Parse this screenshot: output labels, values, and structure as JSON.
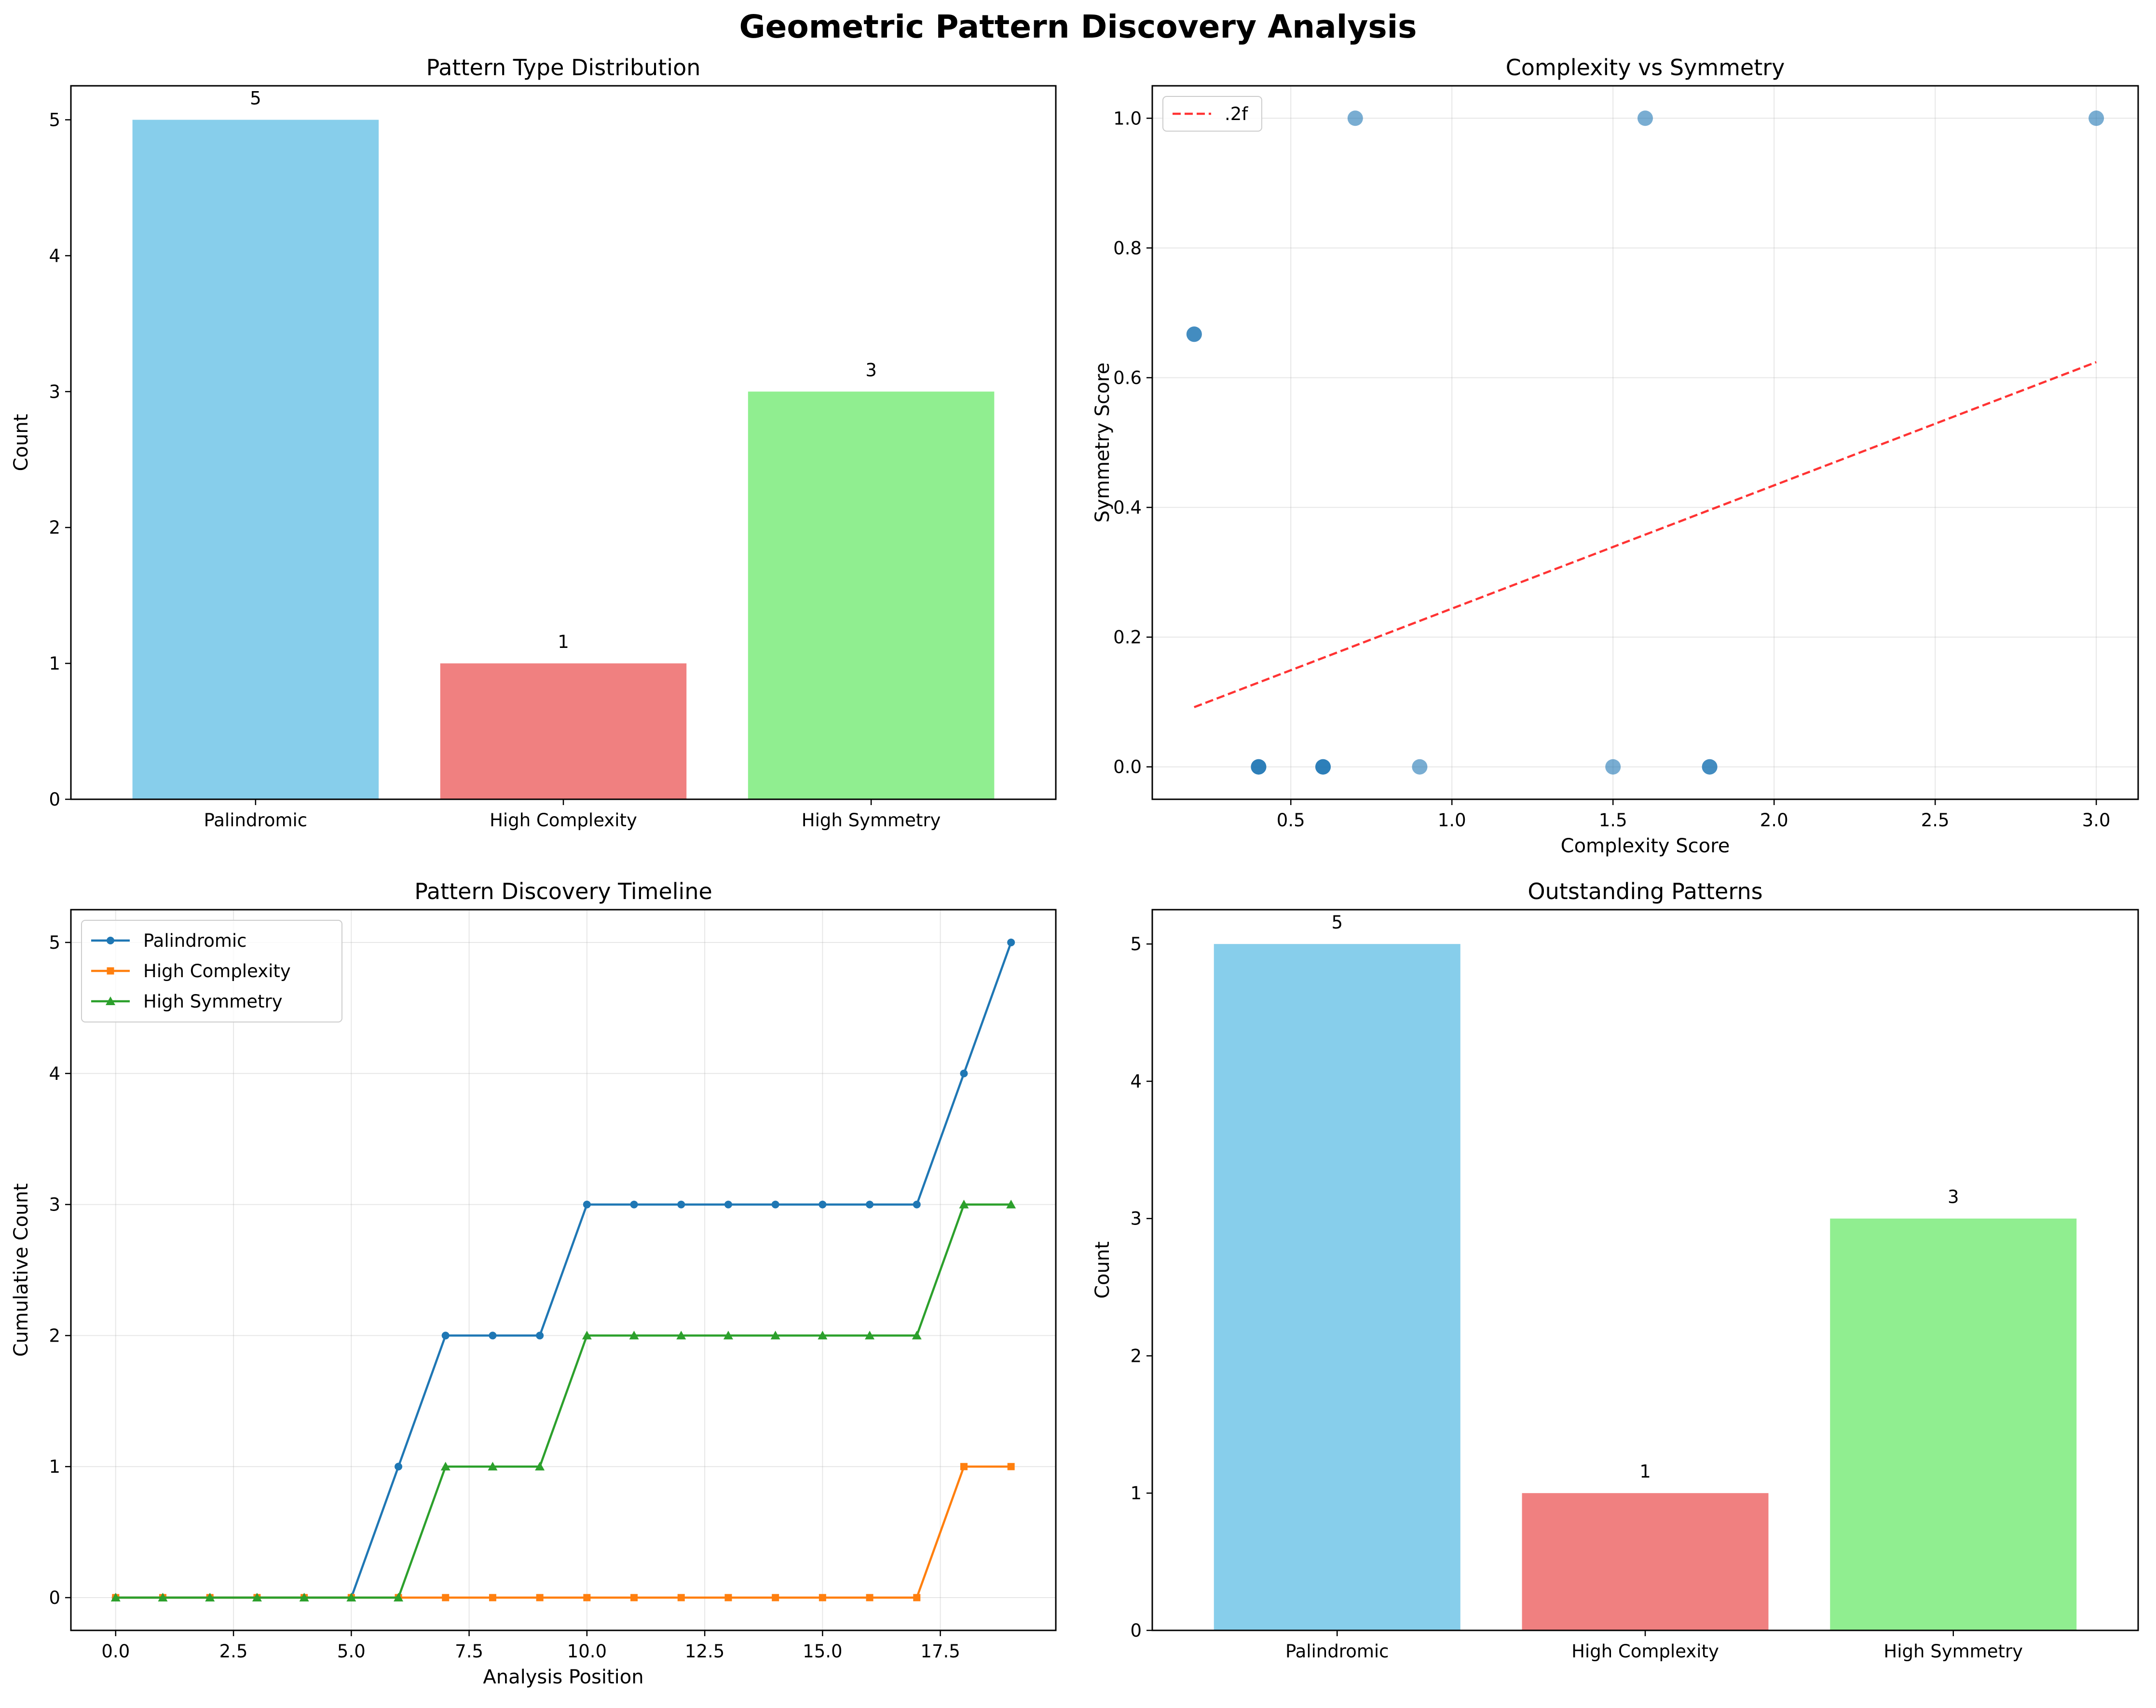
{
  "figure": {
    "title": "Geometric Pattern Discovery Analysis"
  },
  "chart_data": [
    {
      "type": "bar",
      "title": "Pattern Type Distribution",
      "xlabel": "",
      "ylabel": "Count",
      "categories": [
        "Palindromic",
        "High Complexity",
        "High Symmetry"
      ],
      "values": [
        5,
        1,
        3
      ],
      "colors": [
        "#87ceeb",
        "#f08080",
        "#90ee90"
      ],
      "ylim": [
        0,
        5.25
      ],
      "yticks": [
        0,
        1,
        2,
        3,
        4,
        5
      ],
      "data_labels": [
        "5",
        "1",
        "3"
      ],
      "grid": false
    },
    {
      "type": "scatter",
      "title": "Complexity vs Symmetry",
      "xlabel": "Complexity Score",
      "ylabel": "Symmetry Score",
      "xlim": [
        0.07,
        3.13
      ],
      "ylim": [
        -0.05,
        1.05
      ],
      "xticks": [
        "0.5",
        "1.0",
        "1.5",
        "2.0",
        "2.5",
        "3.0"
      ],
      "yticks": [
        "0.0",
        "0.2",
        "0.4",
        "0.6",
        "0.8",
        "1.0"
      ],
      "points": [
        {
          "x": 0.2,
          "y": 0.667
        },
        {
          "x": 0.2,
          "y": 0.667
        },
        {
          "x": 0.4,
          "y": 0.0
        },
        {
          "x": 0.4,
          "y": 0.0
        },
        {
          "x": 0.4,
          "y": 0.0
        },
        {
          "x": 0.6,
          "y": 0.0
        },
        {
          "x": 0.6,
          "y": 0.0
        },
        {
          "x": 0.6,
          "y": 0.0
        },
        {
          "x": 0.7,
          "y": 1.0
        },
        {
          "x": 0.9,
          "y": 0.0
        },
        {
          "x": 1.5,
          "y": 0.0
        },
        {
          "x": 1.6,
          "y": 1.0
        },
        {
          "x": 1.8,
          "y": 0.0
        },
        {
          "x": 1.8,
          "y": 0.0
        },
        {
          "x": 3.0,
          "y": 1.0
        }
      ],
      "point_color": "#1f77b4",
      "trendline": {
        "x": [
          0.2,
          3.0
        ],
        "y": [
          0.092,
          0.624
        ],
        "color": "#ff0000",
        "label": ".2f"
      },
      "legend_position": "upper-left",
      "grid": true
    },
    {
      "type": "line",
      "title": "Pattern Discovery Timeline",
      "xlabel": "Analysis Position",
      "ylabel": "Cumulative Count",
      "x": [
        0,
        1,
        2,
        3,
        4,
        5,
        6,
        7,
        8,
        9,
        10,
        11,
        12,
        13,
        14,
        15,
        16,
        17,
        18,
        19
      ],
      "xlim": [
        -0.95,
        19.95
      ],
      "ylim": [
        -0.25,
        5.25
      ],
      "xticks": [
        "0.0",
        "2.5",
        "5.0",
        "7.5",
        "10.0",
        "12.5",
        "15.0",
        "17.5"
      ],
      "yticks": [
        "0",
        "1",
        "2",
        "3",
        "4",
        "5"
      ],
      "series": [
        {
          "name": "Palindromic",
          "color": "#1f77b4",
          "marker": "circle",
          "values": [
            0,
            0,
            0,
            0,
            0,
            0,
            1,
            2,
            2,
            2,
            3,
            3,
            3,
            3,
            3,
            3,
            3,
            3,
            4,
            5
          ]
        },
        {
          "name": "High Complexity",
          "color": "#ff7f0e",
          "marker": "square",
          "values": [
            0,
            0,
            0,
            0,
            0,
            0,
            0,
            0,
            0,
            0,
            0,
            0,
            0,
            0,
            0,
            0,
            0,
            0,
            1,
            1
          ]
        },
        {
          "name": "High Symmetry",
          "color": "#2ca02c",
          "marker": "triangle",
          "values": [
            0,
            0,
            0,
            0,
            0,
            0,
            0,
            1,
            1,
            1,
            2,
            2,
            2,
            2,
            2,
            2,
            2,
            2,
            3,
            3
          ]
        }
      ],
      "legend_position": "upper-left",
      "grid": true
    },
    {
      "type": "bar",
      "title": "Outstanding Patterns",
      "xlabel": "",
      "ylabel": "Count",
      "categories": [
        "Palindromic",
        "High Complexity",
        "High Symmetry"
      ],
      "values": [
        5,
        1,
        3
      ],
      "colors": [
        "#87ceeb",
        "#f08080",
        "#90ee90"
      ],
      "ylim": [
        0,
        5.25
      ],
      "yticks": [
        0,
        1,
        2,
        3,
        4,
        5
      ],
      "data_labels": [
        "5",
        "1",
        "3"
      ],
      "grid": false
    }
  ]
}
